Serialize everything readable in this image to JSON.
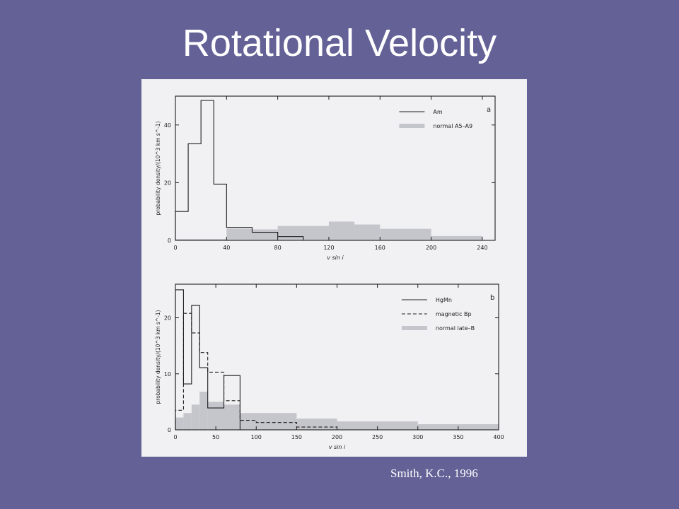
{
  "slide": {
    "title": "Rotational Velocity",
    "credit": "Smith, K.C., 1996"
  },
  "colors": {
    "background": "#636196",
    "figure_paper": "#f1f1f3",
    "line": "#1e1e1e",
    "fill": "#c5c5cc"
  },
  "chart_data": [
    {
      "type": "bar",
      "panel_label": "a",
      "xlabel": "v sin i",
      "ylabel": "probability density/(10^3 km s^-1)",
      "xlim": [
        0,
        250
      ],
      "ylim": [
        0,
        50
      ],
      "xticks": [
        0,
        40,
        80,
        120,
        160,
        200,
        240
      ],
      "yticks": [
        0,
        20,
        40
      ],
      "legend": "top-right",
      "series": [
        {
          "name": "Am",
          "style": "solid-step",
          "bin_edges": [
            0,
            10,
            20,
            30,
            40,
            60,
            80,
            100
          ],
          "values": [
            10,
            33.5,
            48.5,
            19.5,
            4.5,
            2.8,
            1.3
          ]
        },
        {
          "name": "normal A5–A9",
          "style": "filled-step",
          "bin_edges": [
            0,
            40,
            60,
            80,
            120,
            140,
            160,
            200,
            240
          ],
          "values": [
            0.5,
            4,
            3.8,
            5,
            6.5,
            5.5,
            4,
            1.5
          ]
        }
      ]
    },
    {
      "type": "bar",
      "panel_label": "b",
      "xlabel": "v sin i",
      "ylabel": "probability density/(10^3 km s^-1)",
      "xlim": [
        0,
        400
      ],
      "ylim": [
        0,
        26
      ],
      "xticks": [
        0,
        50,
        100,
        150,
        200,
        250,
        300,
        350,
        400
      ],
      "yticks": [
        0,
        10,
        20
      ],
      "legend": "top-right",
      "series": [
        {
          "name": "HgMn",
          "style": "solid-step",
          "bin_edges": [
            0,
            10,
            20,
            30,
            40,
            50,
            60,
            80,
            100
          ],
          "values": [
            25,
            8.2,
            22.2,
            11.1,
            3.9,
            3.9,
            9.7,
            0
          ]
        },
        {
          "name": "magnetic Bp",
          "style": "dashed-step",
          "bin_edges": [
            0,
            10,
            20,
            30,
            40,
            60,
            80,
            100,
            150,
            200,
            250
          ],
          "values": [
            3.5,
            20.8,
            17.3,
            13.8,
            10.3,
            5.2,
            1.7,
            1.3,
            0.5,
            0
          ]
        },
        {
          "name": "normal late–B",
          "style": "filled-step",
          "bin_edges": [
            0,
            10,
            20,
            30,
            40,
            60,
            80,
            150,
            200,
            300,
            400
          ],
          "values": [
            2.2,
            3,
            4.5,
            6.8,
            5,
            4.5,
            3,
            2,
            1.5,
            1
          ]
        }
      ]
    }
  ]
}
